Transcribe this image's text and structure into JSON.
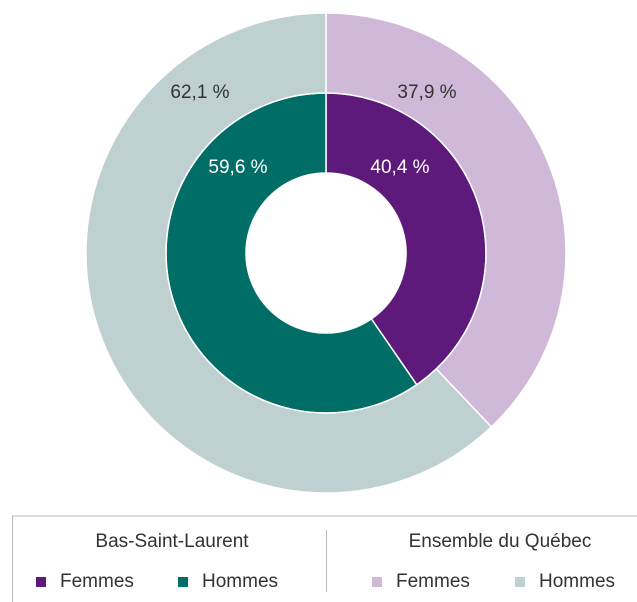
{
  "chart_data": {
    "type": "donut",
    "categories": [
      "Femmes",
      "Hommes"
    ],
    "series": [
      {
        "name": "Bas-Saint-Laurent",
        "colors": [
          "#5e1a7a",
          "#006e66"
        ],
        "values": [
          40.4,
          59.6
        ],
        "value_labels": [
          "40,4 %",
          "59,6 %"
        ]
      },
      {
        "name": "Ensemble du Québec",
        "colors": [
          "#cfb8d8",
          "#bfd0d0"
        ],
        "values": [
          37.9,
          62.1
        ],
        "value_labels": [
          "37,9 %",
          "62,1 %"
        ]
      }
    ]
  }
}
